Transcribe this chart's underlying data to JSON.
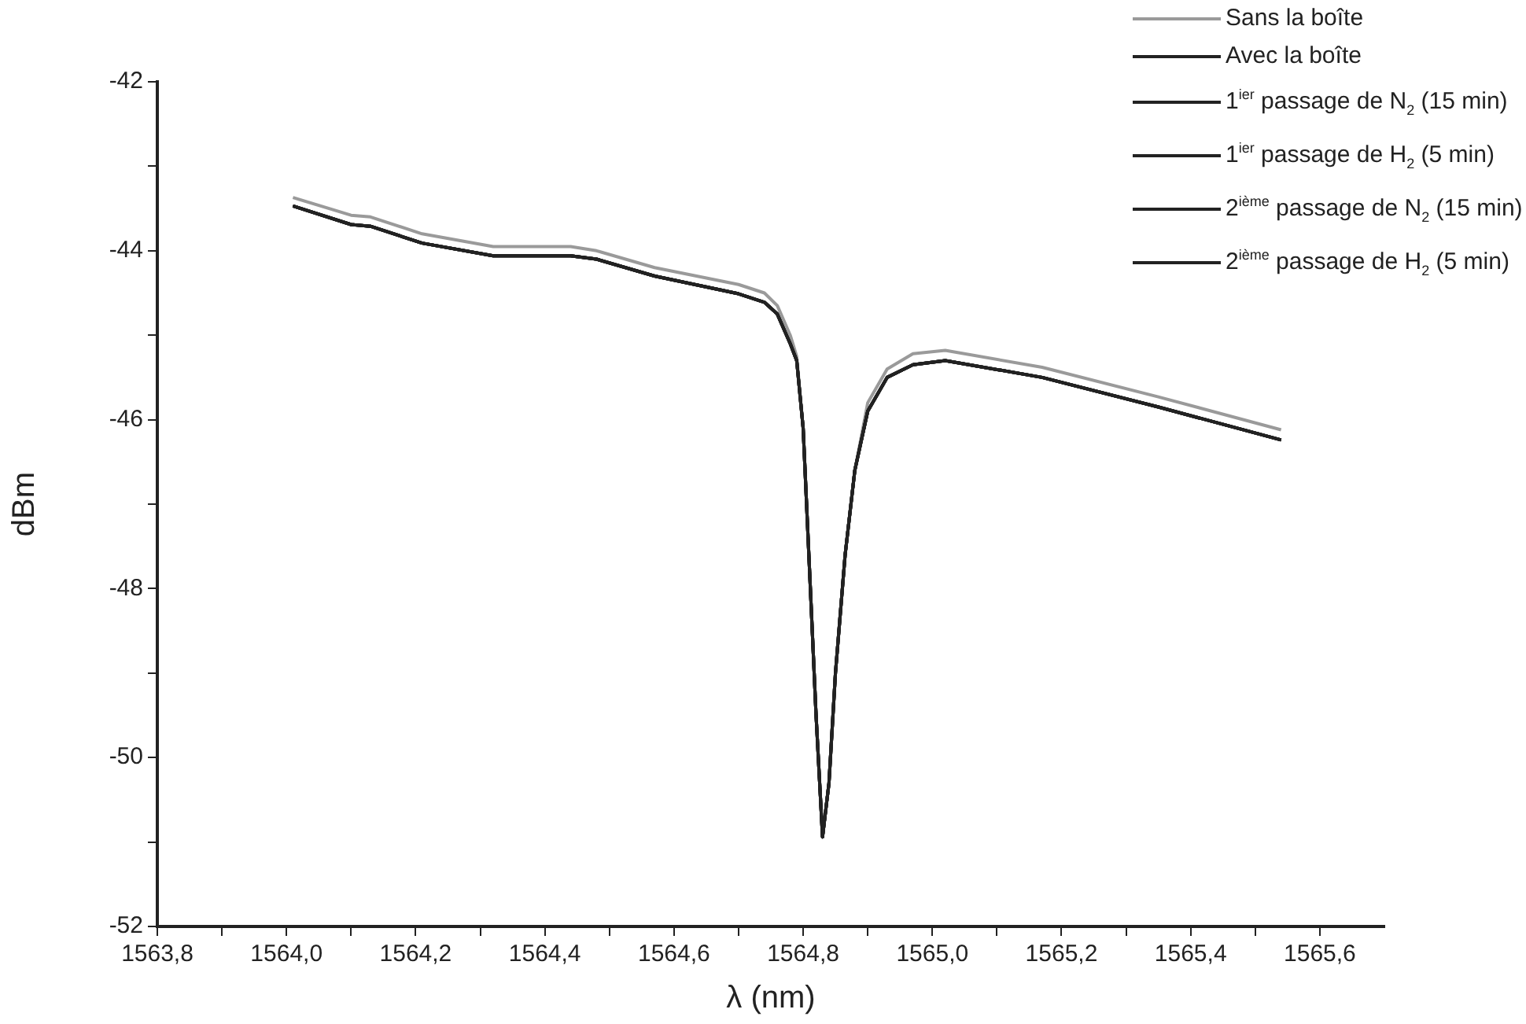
{
  "chart_data": {
    "type": "line",
    "xlabel": "λ (nm)",
    "ylabel": "dBm",
    "legend": "top right",
    "grid": false,
    "xlim": [
      1563.8,
      1565.7
    ],
    "xticks": [
      {
        "value": 1563.8,
        "label": "1563,8"
      },
      {
        "value": 1563.9,
        "label": null
      },
      {
        "value": 1564.0,
        "label": "1564,0"
      },
      {
        "value": 1564.1,
        "label": null
      },
      {
        "value": 1564.2,
        "label": "1564,2"
      },
      {
        "value": 1564.3,
        "label": null
      },
      {
        "value": 1564.4,
        "label": "1564,4"
      },
      {
        "value": 1564.5,
        "label": null
      },
      {
        "value": 1564.6,
        "label": "1564,6"
      },
      {
        "value": 1564.7,
        "label": null
      },
      {
        "value": 1564.8,
        "label": "1564,8"
      },
      {
        "value": 1564.9,
        "label": null
      },
      {
        "value": 1565.0,
        "label": "1565,0"
      },
      {
        "value": 1565.1,
        "label": null
      },
      {
        "value": 1565.2,
        "label": "1565,2"
      },
      {
        "value": 1565.3,
        "label": null
      },
      {
        "value": 1565.4,
        "label": "1565,4"
      },
      {
        "value": 1565.5,
        "label": null
      },
      {
        "value": 1565.6,
        "label": "1565,6"
      }
    ],
    "ylim": [
      -52,
      -42
    ],
    "yticks": [
      -52,
      {
        "value": -51,
        "label": null
      },
      -50,
      {
        "value": -49,
        "label": null
      },
      -48,
      {
        "value": -47,
        "label": null
      },
      -46,
      {
        "value": -45,
        "label": null
      },
      -44,
      {
        "value": -43,
        "label": null
      },
      -42
    ],
    "x": [
      1564.01,
      1564.1,
      1564.13,
      1564.21,
      1564.32,
      1564.44,
      1564.48,
      1564.57,
      1564.7,
      1564.74,
      1564.76,
      1564.78,
      1564.79,
      1564.8,
      1564.81,
      1564.82,
      1564.83,
      1564.84,
      1564.85,
      1564.865,
      1564.88,
      1564.9,
      1564.93,
      1564.97,
      1565.02,
      1565.17,
      1565.35,
      1565.54
    ],
    "series": [
      {
        "name": "Sans la boîte",
        "color": "#9a9a9a",
        "values": [
          -43.37,
          -43.58,
          -43.6,
          -43.8,
          -43.95,
          -43.95,
          -44.0,
          -44.2,
          -44.4,
          -44.5,
          -44.65,
          -45.0,
          -45.25,
          -46.1,
          -47.8,
          -49.5,
          -50.94,
          -50.3,
          -49.0,
          -47.6,
          -46.6,
          -45.8,
          -45.4,
          -45.22,
          -45.18,
          -45.38,
          -45.73,
          -46.12
        ]
      },
      {
        "name": "Avec la boîte",
        "color": "#222222",
        "values": [
          -43.47,
          -43.69,
          -43.71,
          -43.91,
          -44.06,
          -44.06,
          -44.1,
          -44.3,
          -44.51,
          -44.61,
          -44.75,
          -45.1,
          -45.3,
          -46.1,
          -47.8,
          -49.5,
          -50.94,
          -50.3,
          -49.0,
          -47.6,
          -46.6,
          -45.9,
          -45.5,
          -45.35,
          -45.3,
          -45.5,
          -45.85,
          -46.24
        ]
      },
      {
        "name": "1$^{ier}$ passage de N$_{2}$ (15 min)",
        "color": "#222222",
        "values": [
          -43.47,
          -43.69,
          -43.71,
          -43.91,
          -44.06,
          -44.06,
          -44.1,
          -44.3,
          -44.51,
          -44.61,
          -44.75,
          -45.1,
          -45.3,
          -46.1,
          -47.8,
          -49.5,
          -50.94,
          -50.3,
          -49.0,
          -47.6,
          -46.6,
          -45.9,
          -45.5,
          -45.35,
          -45.3,
          -45.5,
          -45.85,
          -46.24
        ]
      },
      {
        "name": "1$^{ier}$ passage de H$_{2}$ (5 min)",
        "color": "#222222",
        "values": [
          -43.47,
          -43.69,
          -43.71,
          -43.91,
          -44.06,
          -44.06,
          -44.1,
          -44.3,
          -44.51,
          -44.61,
          -44.75,
          -45.1,
          -45.3,
          -46.1,
          -47.8,
          -49.5,
          -50.94,
          -50.3,
          -49.0,
          -47.6,
          -46.6,
          -45.9,
          -45.5,
          -45.35,
          -45.3,
          -45.5,
          -45.85,
          -46.24
        ]
      },
      {
        "name": "2$^{ième}$ passage de N$_{2}$ (15 min)",
        "color": "#222222",
        "values": [
          -43.47,
          -43.69,
          -43.71,
          -43.91,
          -44.06,
          -44.06,
          -44.1,
          -44.3,
          -44.51,
          -44.61,
          -44.75,
          -45.1,
          -45.3,
          -46.1,
          -47.8,
          -49.5,
          -50.94,
          -50.3,
          -49.0,
          -47.6,
          -46.6,
          -45.9,
          -45.5,
          -45.35,
          -45.3,
          -45.5,
          -45.85,
          -46.24
        ]
      },
      {
        "name": "2$^{ième}$ passage de H$_{2}$ (5 min)",
        "color": "#222222",
        "values": [
          -43.47,
          -43.69,
          -43.71,
          -43.91,
          -44.06,
          -44.06,
          -44.1,
          -44.3,
          -44.51,
          -44.61,
          -44.75,
          -45.1,
          -45.3,
          -46.1,
          -47.8,
          -49.5,
          -50.94,
          -50.3,
          -49.0,
          -47.6,
          -46.6,
          -45.9,
          -45.5,
          -45.35,
          -45.3,
          -45.5,
          -45.85,
          -46.24
        ]
      }
    ]
  }
}
